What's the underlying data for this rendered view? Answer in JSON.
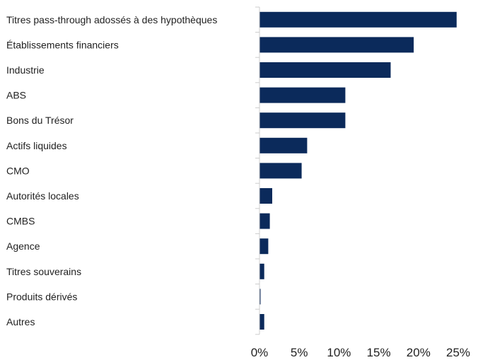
{
  "chart_data": {
    "type": "bar",
    "orientation": "horizontal",
    "title": "",
    "xlabel": "",
    "ylabel": "",
    "categories": [
      "Titres pass-through adossés à des hypothèques",
      "Établissements financiers",
      "Industrie",
      "ABS",
      "Bons du Trésor",
      "Actifs liquides",
      "CMO",
      "Autorités locales",
      "CMBS",
      "Agence",
      "Titres souverains",
      "Produits dérivés",
      "Autres"
    ],
    "values": [
      24.8,
      19.4,
      16.5,
      10.8,
      10.8,
      6.0,
      5.3,
      1.6,
      1.3,
      1.1,
      0.6,
      0.1,
      0.6
    ],
    "xlim": [
      0,
      29
    ],
    "xticks": [
      0,
      5,
      10,
      15,
      20,
      25
    ],
    "xtick_labels": [
      "0%",
      "5%",
      "10%",
      "15%",
      "20%",
      "25%"
    ],
    "grid": false,
    "legend": "none",
    "bar_color": "#0b2a5b",
    "axis_color": "#cccccc"
  }
}
